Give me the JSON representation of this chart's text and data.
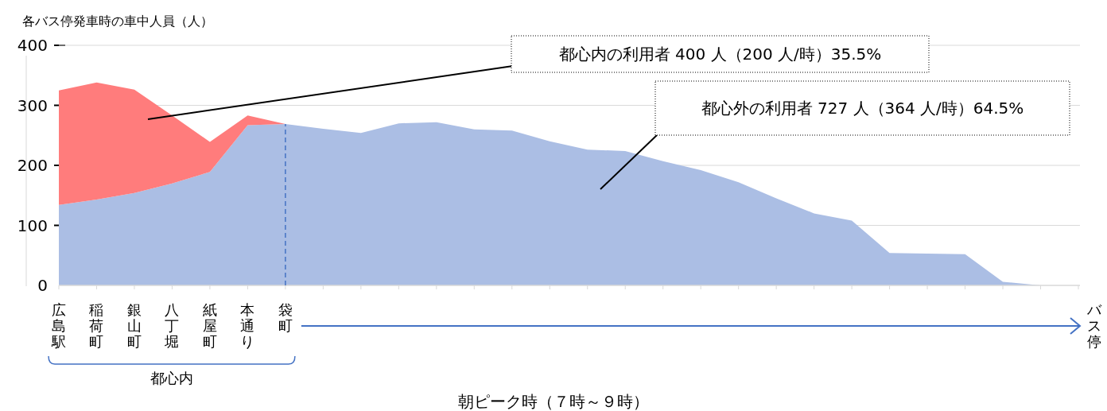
{
  "chart_data": {
    "type": "area",
    "stacked": true,
    "ylabel": "各バス停発車時の車中人員（人）",
    "xlabel": "朝ピーク時（７時～９時）",
    "categories": [
      "広島駅",
      "稲荷町",
      "銀山町",
      "八丁堀",
      "紙屋町",
      "本通り",
      "袋町",
      null,
      null,
      null,
      null,
      null,
      null,
      null,
      null,
      null,
      null,
      null,
      null,
      null,
      null,
      null,
      null,
      null,
      null,
      null,
      null,
      null
    ],
    "series": [
      {
        "color": "#abbee4",
        "values": [
          134,
          143,
          154,
          170,
          189,
          267,
          269,
          261,
          254,
          270,
          272,
          260,
          258,
          240,
          226,
          224,
          207,
          192,
          172,
          145,
          120,
          108,
          54,
          53,
          52,
          6,
          0,
          0
        ]
      },
      {
        "color": "#ff7c7c",
        "values": [
          191,
          195,
          172,
          113,
          50,
          16,
          0,
          0,
          0,
          0,
          0,
          0,
          0,
          0,
          0,
          0,
          0,
          0,
          0,
          0,
          0,
          0,
          0,
          0,
          0,
          0,
          0,
          0
        ]
      }
    ],
    "ylim": [
      0,
      400
    ],
    "yticks": [
      {
        "value": 0,
        "label": "0"
      },
      100,
      200,
      300,
      400
    ],
    "grid": "y",
    "ref_lines": [
      {
        "axis": "x",
        "value": "袋町",
        "color": "#4472c4",
        "line_style": "dashed"
      }
    ],
    "annotations": [
      "都心内の利用者 400 人（200 人/時）35.5%",
      "都心外の利用者 727 人（364 人/時）64.5%",
      "都心内",
      "バス停"
    ]
  }
}
